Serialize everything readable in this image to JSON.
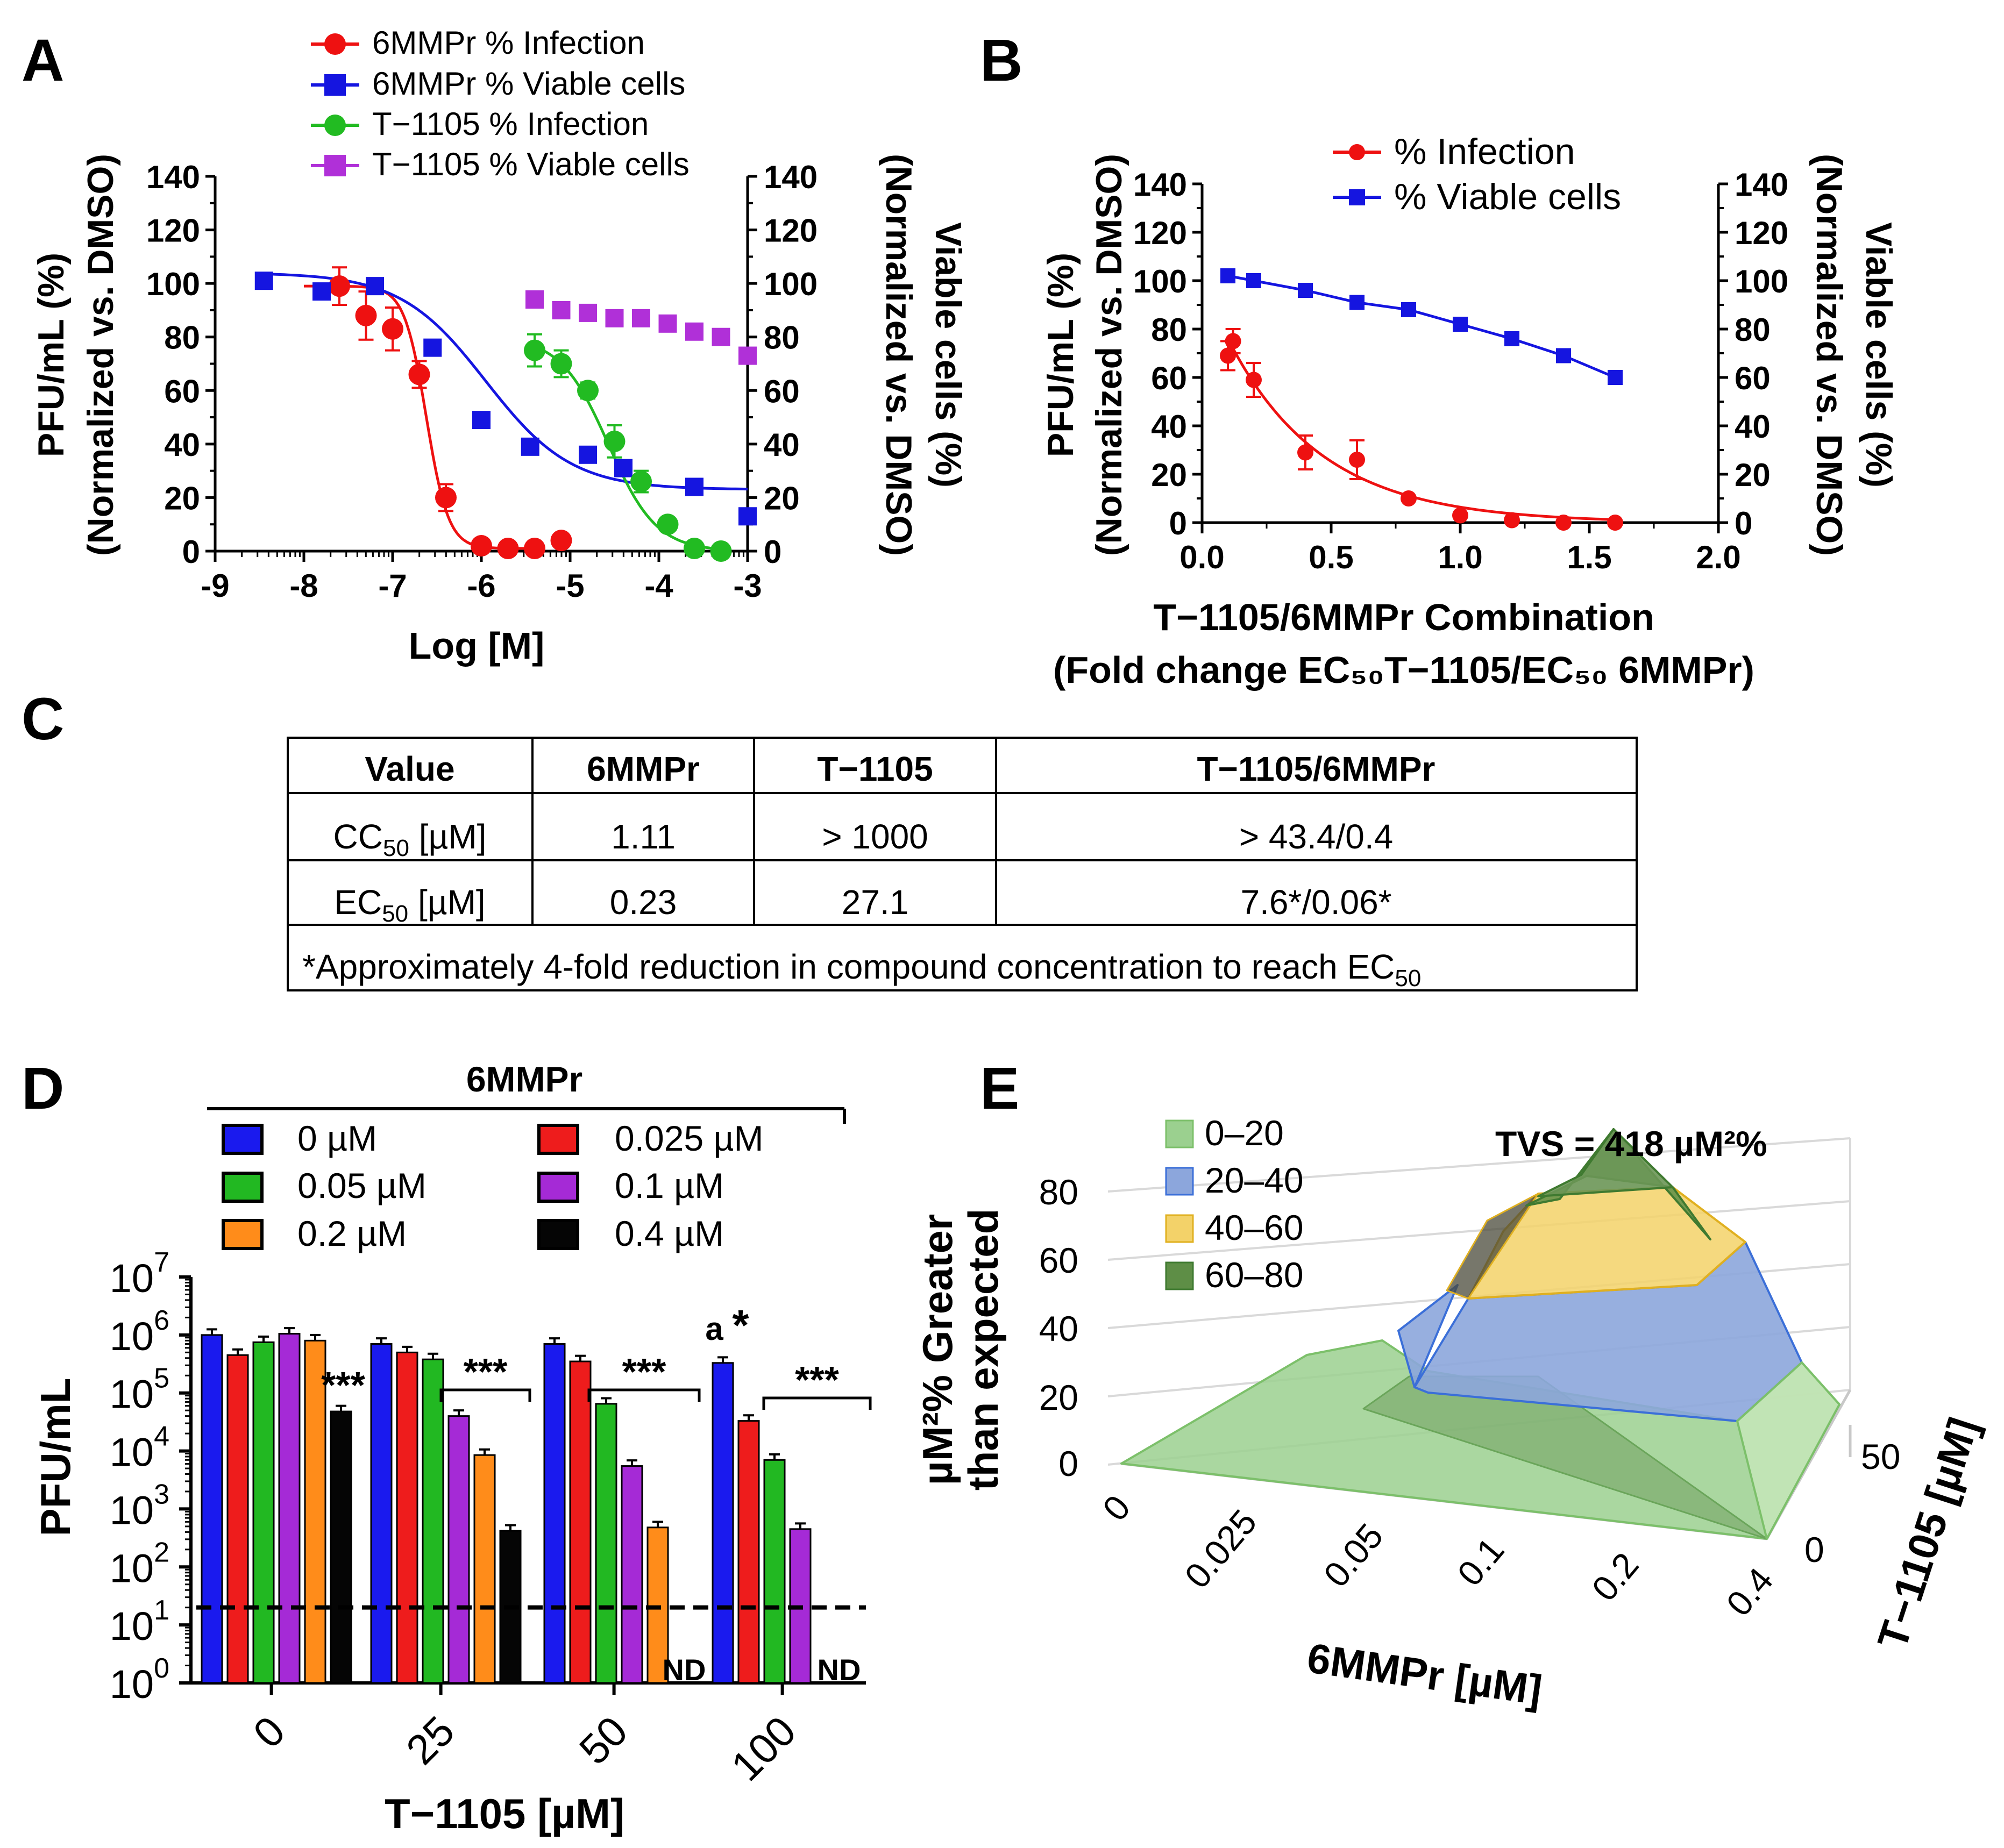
{
  "panel_letters": {
    "A": "A",
    "B": "B",
    "C": "C",
    "D": "D",
    "E": "E"
  },
  "chart_data": [
    {
      "panel": "A",
      "type": "scatter",
      "xlabel": "Log [M]",
      "ylabel_left": [
        "PFU/mL (%)",
        "(Normalized vs. DMSO)"
      ],
      "ylabel_right": [
        "Viable cells (%)",
        "(Normalized vs. DMSO)"
      ],
      "xlim": [
        -9,
        -3
      ],
      "ylim": [
        0,
        140
      ],
      "x_ticks": [
        -9,
        -8,
        -7,
        -6,
        -5,
        -4,
        -3
      ],
      "x_tick_labels": [
        "-9",
        "-8",
        "-7",
        "-6",
        "-5",
        "-4",
        "-3"
      ],
      "y_ticks": [
        0,
        20,
        40,
        60,
        80,
        100,
        120,
        140
      ],
      "y_tick_labels": [
        "0",
        "20",
        "40",
        "60",
        "80",
        "100",
        "120",
        "140"
      ],
      "series": [
        {
          "name": "6MMPr % Infection",
          "color": "#ee1111",
          "marker": "circle",
          "x": [
            -7.6,
            -7.3,
            -7.0,
            -6.7,
            -6.4,
            -6.0,
            -5.7,
            -5.4,
            -5.1
          ],
          "y": [
            99,
            88,
            83,
            66,
            20,
            2,
            1,
            1,
            4
          ],
          "err": [
            7,
            9,
            8,
            5,
            5,
            0,
            0,
            0,
            0
          ],
          "fit": {
            "top": 99,
            "bottom": 1,
            "logec50": -6.62,
            "hill": -3.5,
            "from": -8.0,
            "to": -5.4
          }
        },
        {
          "name": "6MMPr % Viable cells",
          "color": "#1515e0",
          "marker": "square",
          "x": [
            -8.45,
            -7.8,
            -7.2,
            -6.55,
            -6.0,
            -5.45,
            -4.8,
            -4.4,
            -3.6,
            -3.0
          ],
          "y": [
            101,
            97,
            99,
            76,
            49,
            39,
            36,
            31,
            24,
            13
          ],
          "fit": {
            "top": 104,
            "bottom": 23,
            "logec50": -5.95,
            "hill": -0.9,
            "from": -8.45,
            "to": -3.0
          }
        },
        {
          "name": "T−1105  % Infection",
          "color": "#22bb22",
          "marker": "circle",
          "x": [
            -5.4,
            -5.1,
            -4.8,
            -4.5,
            -4.2,
            -3.9,
            -3.6,
            -3.3
          ],
          "y": [
            75,
            70,
            60,
            41,
            26,
            10,
            1,
            0
          ],
          "err": [
            6,
            5,
            3,
            6,
            4,
            0,
            0,
            0
          ],
          "fit": {
            "top": 80,
            "bottom": 0,
            "logec50": -4.57,
            "hill": -1.6,
            "from": -5.4,
            "to": -3.3
          }
        },
        {
          "name": "T−1105  % Viable cells",
          "color": "#b030d8",
          "marker": "square",
          "x": [
            -5.4,
            -5.1,
            -4.8,
            -4.5,
            -4.2,
            -3.9,
            -3.6,
            -3.3,
            -3.0
          ],
          "y": [
            94,
            90,
            89,
            87,
            87,
            85,
            82,
            80,
            73
          ]
        }
      ]
    },
    {
      "panel": "B",
      "type": "scatter",
      "xlabel": [
        "T−1105/6MMPr Combination",
        "(Fold change EC₅₀T−1105/EC₅₀ 6MMPr)"
      ],
      "ylabel_left": [
        "PFU/mL (%)",
        "(Normalized vs. DMSO)"
      ],
      "ylabel_right": [
        "Viable cells (%)",
        "(Normalized vs. DMSO)"
      ],
      "xlim": [
        0,
        2.0
      ],
      "ylim": [
        0,
        140
      ],
      "x_ticks": [
        0,
        0.5,
        1.0,
        1.5,
        2.0
      ],
      "x_tick_labels": [
        "0.0",
        "0.5",
        "1.0",
        "1.5",
        "2.0"
      ],
      "y_ticks": [
        0,
        20,
        40,
        60,
        80,
        100,
        120,
        140
      ],
      "y_tick_labels": [
        "0",
        "20",
        "40",
        "60",
        "80",
        "100",
        "120",
        "140"
      ],
      "series": [
        {
          "name": "% Infection",
          "color": "#ee1111",
          "marker": "circle",
          "x": [
            0.1,
            0.12,
            0.2,
            0.4,
            0.6,
            0.8,
            1.0,
            1.2,
            1.4,
            1.6
          ],
          "y": [
            69,
            75,
            59,
            29,
            26,
            10,
            3,
            1,
            0,
            0
          ],
          "err": [
            6,
            5,
            7,
            7,
            8,
            0,
            0,
            0,
            0,
            0
          ]
        },
        {
          "name": "% Viable cells",
          "color": "#1515e0",
          "marker": "square",
          "x": [
            0.1,
            0.2,
            0.4,
            0.6,
            0.8,
            1.0,
            1.2,
            1.4,
            1.6
          ],
          "y": [
            102,
            100,
            96,
            91,
            88,
            82,
            76,
            69,
            60
          ]
        }
      ]
    },
    {
      "panel": "D",
      "type": "bar",
      "title": "6MMPr",
      "xlabel": "T−1105 [µM]",
      "ylabel": "PFU/mL",
      "yscale": "log",
      "ylim": [
        1,
        10000000
      ],
      "y_ticks": [
        {
          "base": "10",
          "exp": "0"
        },
        {
          "base": "10",
          "exp": "1"
        },
        {
          "base": "10",
          "exp": "2"
        },
        {
          "base": "10",
          "exp": "3"
        },
        {
          "base": "10",
          "exp": "4"
        },
        {
          "base": "10",
          "exp": "5"
        },
        {
          "base": "10",
          "exp": "6"
        },
        {
          "base": "10",
          "exp": "7"
        }
      ],
      "categories": [
        "0",
        "25",
        "50",
        "100"
      ],
      "detection_limit": 20,
      "series": [
        {
          "name": "0 µM",
          "color": "#1a1aee",
          "values": [
            1000000,
            700000,
            700000,
            330000
          ]
        },
        {
          "name": "0.025 µM",
          "color": "#ee1c1c",
          "values": [
            450000,
            500000,
            350000,
            33000
          ]
        },
        {
          "name": "0.05 µM",
          "color": "#22b822",
          "values": [
            750000,
            380000,
            65000,
            7000
          ]
        },
        {
          "name": "0.1 µM",
          "color": "#a52ad6",
          "values": [
            1050000,
            40000,
            5500,
            450
          ]
        },
        {
          "name": "0.2 µM",
          "color": "#ff8c1a",
          "values": [
            800000,
            8500,
            480,
            null
          ]
        },
        {
          "name": "0.4 µM",
          "color": "#050505",
          "values": [
            48000,
            420,
            null,
            null
          ]
        }
      ],
      "annotations": {
        "stars": "***",
        "nd": "ND",
        "a_star_a": "a",
        "a_star_star": "*"
      }
    },
    {
      "panel": "E",
      "type": "surface3d",
      "title": "TVS = 418 µM²%",
      "xlabel": "6MMPr [µM]",
      "ylabel": "T−1105 [µM]",
      "zlabel": [
        "µM²% Greater",
        "than expected"
      ],
      "x_categories": [
        "0",
        "0.025",
        "0.05",
        "0.1",
        "0.2",
        "0.4"
      ],
      "y_ticks": [
        "0",
        "50"
      ],
      "z_ticks": [
        "0",
        "20",
        "40",
        "60",
        "80"
      ],
      "legend": [
        {
          "label": "0–20",
          "color": "#9bd08f"
        },
        {
          "label": "20–40",
          "color": "#8ca6dc"
        },
        {
          "label": "40–60",
          "color": "#f3d269"
        },
        {
          "label": "60–80",
          "color": "#5e8e46"
        }
      ]
    }
  ],
  "table_c": {
    "headers": [
      "Value",
      "6MMPr",
      "T−1105",
      "T−1105/6MMPr"
    ],
    "rows": [
      {
        "value": "CC",
        "sub": "50",
        "unit": " [µM]",
        "c1": "1.11",
        "c2": "> 1000",
        "c3": "> 43.4/0.4"
      },
      {
        "value": "EC",
        "sub": "50",
        "unit": " [µM]",
        "c1": "0.23",
        "c2": "27.1",
        "c3": "7.6*/0.06*"
      }
    ],
    "footnote": "*Approximately 4-fold reduction in compound concentration to reach EC",
    "footnote_sub": "50"
  }
}
